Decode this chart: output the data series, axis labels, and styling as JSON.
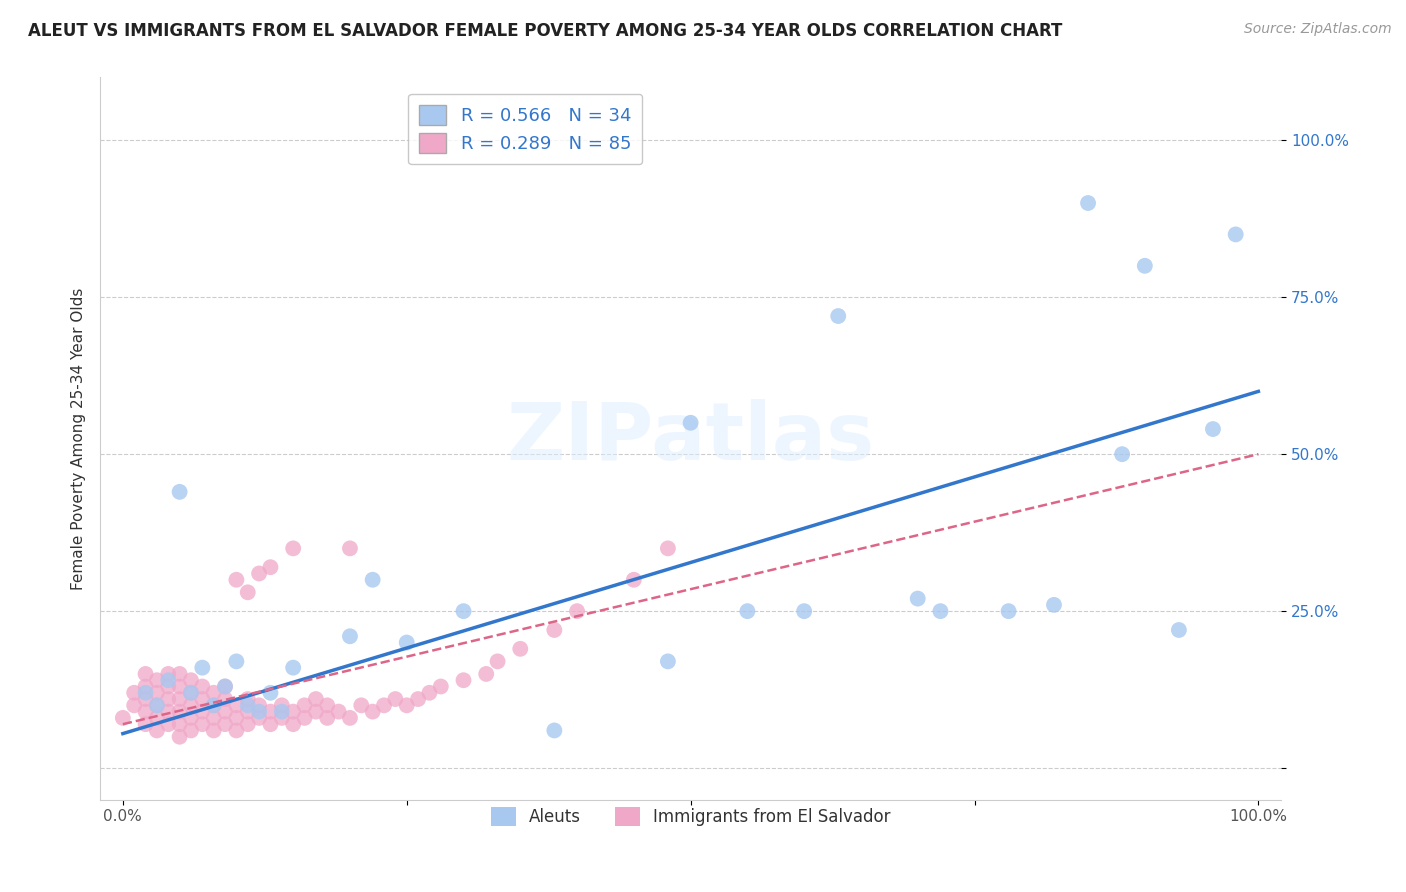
{
  "title": "ALEUT VS IMMIGRANTS FROM EL SALVADOR FEMALE POVERTY AMONG 25-34 YEAR OLDS CORRELATION CHART",
  "source": "Source: ZipAtlas.com",
  "ylabel": "Female Poverty Among 25-34 Year Olds",
  "xlim": [
    -0.02,
    1.02
  ],
  "ylim": [
    -0.05,
    1.1
  ],
  "xtick_positions": [
    0.0,
    0.25,
    0.5,
    0.75,
    1.0
  ],
  "xticklabels": [
    "0.0%",
    "",
    "",
    "",
    "100.0%"
  ],
  "ytick_positions": [
    0.0,
    0.25,
    0.5,
    0.75,
    1.0
  ],
  "yticklabels": [
    "",
    "25.0%",
    "50.0%",
    "75.0%",
    "100.0%"
  ],
  "grid_color": "#cccccc",
  "background_color": "#ffffff",
  "watermark": "ZIPatlas",
  "legend_labels": [
    "Aleuts",
    "Immigrants from El Salvador"
  ],
  "aleut_color": "#a8c8f0",
  "salvador_color": "#f0a8c8",
  "aleut_line_color": "#3377cc",
  "salvador_line_color": "#dd6688",
  "aleut_R": 0.566,
  "aleut_N": 34,
  "salvador_R": 0.289,
  "salvador_N": 85,
  "aleut_scatter_x": [
    0.02,
    0.03,
    0.04,
    0.05,
    0.06,
    0.07,
    0.08,
    0.09,
    0.1,
    0.11,
    0.12,
    0.13,
    0.14,
    0.15,
    0.2,
    0.22,
    0.25,
    0.3,
    0.38,
    0.48,
    0.5,
    0.55,
    0.6,
    0.63,
    0.7,
    0.72,
    0.78,
    0.82,
    0.85,
    0.88,
    0.9,
    0.93,
    0.96,
    0.98
  ],
  "aleut_scatter_y": [
    0.12,
    0.1,
    0.14,
    0.44,
    0.12,
    0.16,
    0.1,
    0.13,
    0.17,
    0.1,
    0.09,
    0.12,
    0.09,
    0.16,
    0.21,
    0.3,
    0.2,
    0.25,
    0.06,
    0.17,
    0.55,
    0.25,
    0.25,
    0.72,
    0.27,
    0.25,
    0.25,
    0.26,
    0.9,
    0.5,
    0.8,
    0.22,
    0.54,
    0.85
  ],
  "salvador_scatter_x": [
    0.0,
    0.01,
    0.01,
    0.02,
    0.02,
    0.02,
    0.02,
    0.02,
    0.03,
    0.03,
    0.03,
    0.03,
    0.03,
    0.04,
    0.04,
    0.04,
    0.04,
    0.04,
    0.05,
    0.05,
    0.05,
    0.05,
    0.05,
    0.05,
    0.06,
    0.06,
    0.06,
    0.06,
    0.06,
    0.07,
    0.07,
    0.07,
    0.07,
    0.08,
    0.08,
    0.08,
    0.08,
    0.09,
    0.09,
    0.09,
    0.09,
    0.1,
    0.1,
    0.1,
    0.1,
    0.11,
    0.11,
    0.11,
    0.11,
    0.12,
    0.12,
    0.12,
    0.13,
    0.13,
    0.13,
    0.14,
    0.14,
    0.15,
    0.15,
    0.15,
    0.16,
    0.16,
    0.17,
    0.17,
    0.18,
    0.18,
    0.19,
    0.2,
    0.2,
    0.21,
    0.22,
    0.23,
    0.24,
    0.25,
    0.26,
    0.27,
    0.28,
    0.3,
    0.32,
    0.33,
    0.35,
    0.38,
    0.4,
    0.45,
    0.48
  ],
  "salvador_scatter_y": [
    0.08,
    0.1,
    0.12,
    0.07,
    0.09,
    0.11,
    0.13,
    0.15,
    0.06,
    0.08,
    0.1,
    0.12,
    0.14,
    0.07,
    0.09,
    0.11,
    0.13,
    0.15,
    0.05,
    0.07,
    0.09,
    0.11,
    0.13,
    0.15,
    0.06,
    0.08,
    0.1,
    0.12,
    0.14,
    0.07,
    0.09,
    0.11,
    0.13,
    0.06,
    0.08,
    0.1,
    0.12,
    0.07,
    0.09,
    0.11,
    0.13,
    0.06,
    0.08,
    0.1,
    0.3,
    0.07,
    0.09,
    0.11,
    0.28,
    0.08,
    0.1,
    0.31,
    0.07,
    0.09,
    0.32,
    0.08,
    0.1,
    0.07,
    0.09,
    0.35,
    0.08,
    0.1,
    0.09,
    0.11,
    0.08,
    0.1,
    0.09,
    0.08,
    0.35,
    0.1,
    0.09,
    0.1,
    0.11,
    0.1,
    0.11,
    0.12,
    0.13,
    0.14,
    0.15,
    0.17,
    0.19,
    0.22,
    0.25,
    0.3,
    0.35
  ],
  "aleut_line_x0": 0.0,
  "aleut_line_y0": 0.055,
  "aleut_line_x1": 1.0,
  "aleut_line_y1": 0.6,
  "salvador_line_x0": 0.0,
  "salvador_line_y0": 0.07,
  "salvador_line_x1": 1.0,
  "salvador_line_y1": 0.5
}
